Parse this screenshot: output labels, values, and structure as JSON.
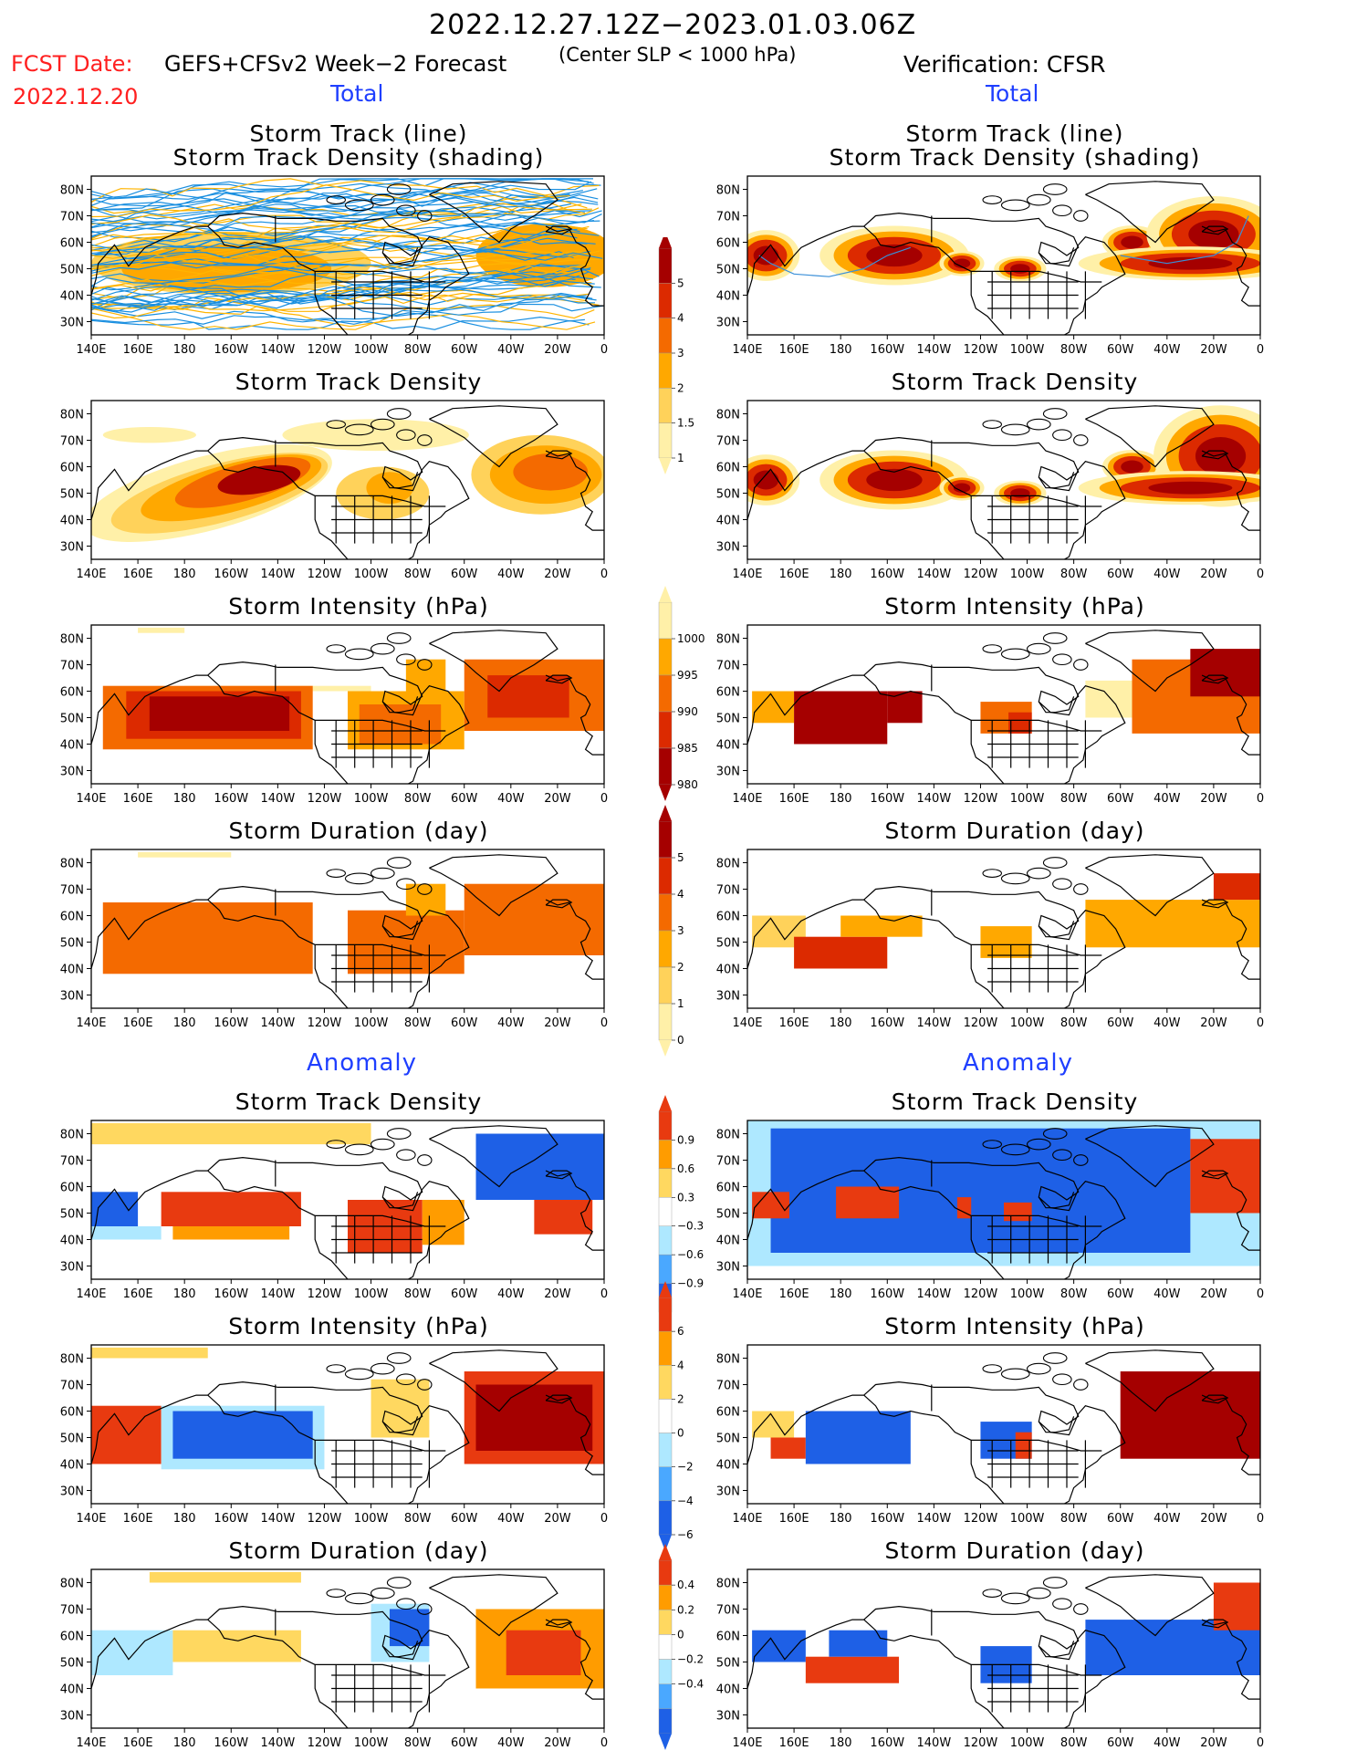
{
  "header": {
    "period": "2022.12.27.12Z−2023.01.03.06Z",
    "fcst_date_label": "FCST Date:",
    "fcst_date": "2022.12.20",
    "model": "GEFS+CFSv2 Week−2 Forecast",
    "criterion": "(Center SLP < 1000 hPa)",
    "verification": "Verification: CFSR",
    "total_label": "Total",
    "anomaly_label": "Anomaly"
  },
  "axes": {
    "lon_ticks": [
      "140E",
      "160E",
      "180",
      "160W",
      "140W",
      "120W",
      "100W",
      "80W",
      "60W",
      "40W",
      "20W",
      "0"
    ],
    "lat_ticks": [
      "80N",
      "70N",
      "60N",
      "50N",
      "40N",
      "30N"
    ]
  },
  "panel_titles": {
    "track_line": "Storm Track (line)",
    "track_shading": "Storm Track Density (shading)",
    "density": "Storm Track Density",
    "intensity": "Storm Intensity (hPa)",
    "duration": "Storm Duration (day)"
  },
  "colorbars": {
    "density_total": {
      "labels": [
        "5",
        "4",
        "3",
        "2",
        "1.5",
        "1"
      ],
      "colors": [
        "#a50000",
        "#dc2a00",
        "#f46a00",
        "#ffa800",
        "#ffd25a",
        "#fff0a8"
      ]
    },
    "intensity_total": {
      "labels": [
        "1000",
        "995",
        "990",
        "985",
        "980"
      ],
      "colors": [
        "#fff0a8",
        "#ffa800",
        "#f46a00",
        "#dc2a00",
        "#a50000"
      ]
    },
    "duration_total": {
      "labels": [
        "5",
        "4",
        "3",
        "2",
        "1",
        "0"
      ],
      "colors": [
        "#a50000",
        "#dc2a00",
        "#f46a00",
        "#ffa800",
        "#ffd25a",
        "#fff0a8"
      ]
    },
    "density_anom": {
      "labels": [
        "0.9",
        "0.6",
        "0.3",
        "−0.3",
        "−0.6",
        "−0.9"
      ],
      "colors": [
        "#e83a10",
        "#ff9c00",
        "#ffd860",
        "#ffffff",
        "#aee8ff",
        "#4aa8ff",
        "#1e60e6"
      ]
    },
    "intensity_anom": {
      "labels": [
        "6",
        "4",
        "2",
        "0",
        "−2",
        "−4",
        "−6"
      ],
      "colors": [
        "#e83a10",
        "#ff9c00",
        "#ffd860",
        "#ffffff",
        "#aee8ff",
        "#4aa8ff",
        "#1e60e6"
      ]
    },
    "duration_anom": {
      "labels": [
        "0.4",
        "0.2",
        "0",
        "−0.2",
        "−0.4"
      ],
      "colors": [
        "#e83a10",
        "#ff9c00",
        "#ffd860",
        "#ffffff",
        "#aee8ff",
        "#4aa8ff",
        "#1e60e6"
      ]
    }
  }
}
